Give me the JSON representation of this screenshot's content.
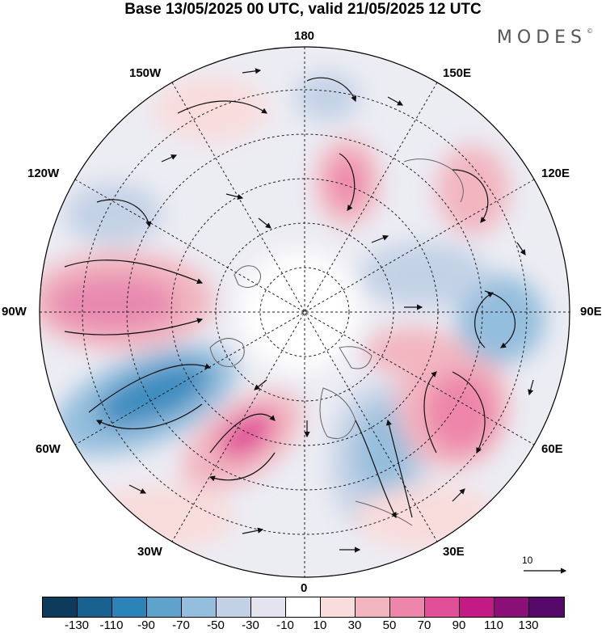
{
  "title": "Base 13/05/2025 00 UTC, valid 21/05/2025 12 UTC",
  "brand": "MODES",
  "brand_mark": "©",
  "longitude_labels": {
    "top": "180",
    "bottom": "0",
    "left": "90W",
    "right": "90E",
    "upper_left": "150W",
    "upper_left2": "120W",
    "upper_right": "150E",
    "upper_right2": "120E",
    "lower_left": "60W",
    "lower_left2": "30W",
    "lower_right": "60E",
    "lower_right2": "30E"
  },
  "reference_vector": "10",
  "colorbar": {
    "colors": [
      "#0d3b5c",
      "#17608f",
      "#2b83b8",
      "#5fa3cc",
      "#94bedd",
      "#c3d1e6",
      "#e4e4f1",
      "#ffffff",
      "#f9dcdc",
      "#f2b5c0",
      "#ed86aa",
      "#e04f98",
      "#c31a86",
      "#8a0f77",
      "#57086b"
    ],
    "ticks": [
      "-130",
      "-110",
      "-90",
      "-70",
      "-50",
      "-30",
      "-10",
      "10",
      "30",
      "50",
      "70",
      "90",
      "110",
      "130"
    ]
  },
  "anomaly_centers": [
    {
      "lon": "90W",
      "sign": "positive",
      "level": "70"
    },
    {
      "lon": "60W",
      "sign": "negative",
      "level": "-90"
    },
    {
      "lon": "30W",
      "sign": "positive",
      "level": "90"
    },
    {
      "lon": "30E",
      "sign": "negative",
      "level": "-50"
    },
    {
      "lon": "60E",
      "sign": "positive",
      "level": "70"
    },
    {
      "lon": "90E",
      "sign": "negative",
      "level": "-50"
    },
    {
      "lon": "120E",
      "sign": "positive",
      "level": "50"
    },
    {
      "lon": "170E",
      "sign": "positive",
      "level": "70"
    },
    {
      "lon": "150W",
      "sign": "positive",
      "level": "30"
    },
    {
      "lon": "180",
      "sign": "negative",
      "level": "-30"
    },
    {
      "lon": "120W",
      "sign": "negative",
      "level": "-50"
    }
  ]
}
